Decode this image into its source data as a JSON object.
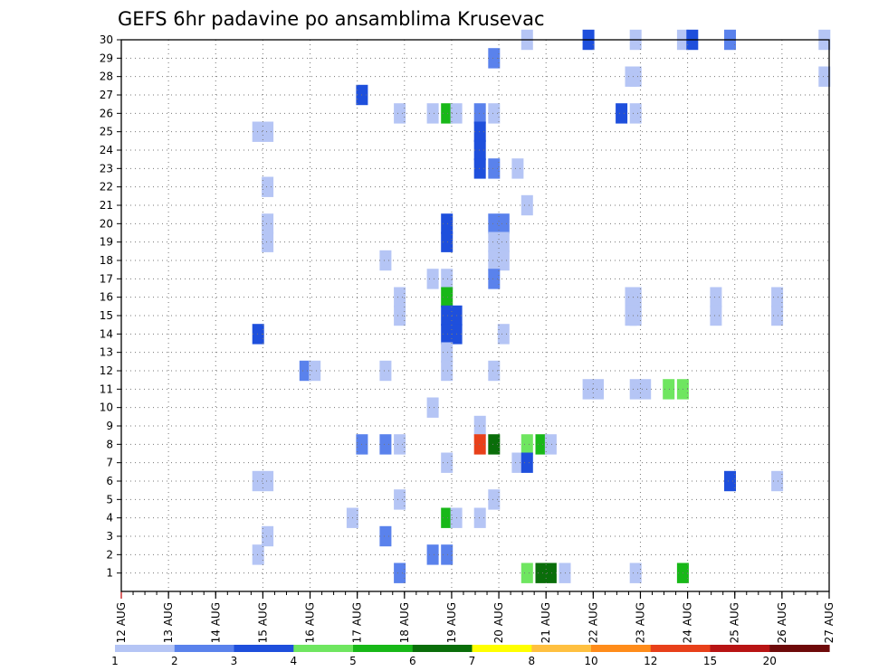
{
  "chart_data": {
    "type": "heatmap",
    "title": "GEFS 6hr padavine po ansamblima Krusevac",
    "xlabel": "",
    "ylabel": "",
    "x_tick_labels": [
      "12 AUG",
      "13 AUG",
      "14 AUG",
      "15 AUG",
      "16 AUG",
      "17 AUG",
      "18 AUG",
      "19 AUG",
      "20 AUG",
      "21 AUG",
      "22 AUG",
      "23 AUG",
      "24 AUG",
      "25 AUG",
      "26 AUG",
      "27 AUG"
    ],
    "xlim_days": [
      12,
      27
    ],
    "y_members": [
      1,
      2,
      3,
      4,
      5,
      6,
      7,
      8,
      9,
      10,
      11,
      12,
      13,
      14,
      15,
      16,
      17,
      18,
      19,
      20,
      21,
      22,
      23,
      24,
      25,
      26,
      27,
      28,
      29,
      30
    ],
    "ylim": [
      0,
      30
    ],
    "grid": true,
    "legend": "horizontal colorbar at bottom",
    "colorbar": {
      "labels": [
        "1",
        "2",
        "3",
        "4",
        "5",
        "6",
        "7",
        "8",
        "10",
        "12",
        "15",
        "20"
      ],
      "colors": [
        "#b5c5f5",
        "#5a82ec",
        "#1e4fdc",
        "#6fe660",
        "#18b818",
        "#0a6e0a",
        "#ffff00",
        "#ffc040",
        "#ff8c1a",
        "#e8401a",
        "#b81414",
        "#6e0a0a"
      ]
    },
    "cells": [
      {
        "m": 30,
        "x": 20.6,
        "c": 1
      },
      {
        "m": 30,
        "x": 21.9,
        "c": 3
      },
      {
        "m": 30,
        "x": 22.9,
        "c": 1
      },
      {
        "m": 30,
        "x": 23.9,
        "c": 1
      },
      {
        "m": 30,
        "x": 24.1,
        "c": 3
      },
      {
        "m": 30,
        "x": 24.9,
        "c": 2
      },
      {
        "m": 30,
        "x": 26.9,
        "c": 1
      },
      {
        "m": 29,
        "x": 19.9,
        "c": 2
      },
      {
        "m": 28,
        "x": 22.8,
        "c": 1
      },
      {
        "m": 28,
        "x": 22.9,
        "c": 1
      },
      {
        "m": 28,
        "x": 26.9,
        "c": 1
      },
      {
        "m": 27,
        "x": 17.1,
        "c": 3
      },
      {
        "m": 26,
        "x": 17.9,
        "c": 1
      },
      {
        "m": 26,
        "x": 18.6,
        "c": 1
      },
      {
        "m": 26,
        "x": 18.9,
        "c": 5
      },
      {
        "m": 26,
        "x": 19.1,
        "c": 1
      },
      {
        "m": 26,
        "x": 19.6,
        "c": 2
      },
      {
        "m": 26,
        "x": 19.9,
        "c": 1
      },
      {
        "m": 26,
        "x": 22.6,
        "c": 3
      },
      {
        "m": 26,
        "x": 22.9,
        "c": 1
      },
      {
        "m": 25,
        "x": 14.9,
        "c": 1
      },
      {
        "m": 25,
        "x": 15.1,
        "c": 1
      },
      {
        "m": 25,
        "x": 19.6,
        "c": 3
      },
      {
        "m": 24,
        "x": 19.6,
        "c": 3
      },
      {
        "m": 23,
        "x": 19.6,
        "c": 3
      },
      {
        "m": 23,
        "x": 19.9,
        "c": 2
      },
      {
        "m": 23,
        "x": 20.4,
        "c": 1
      },
      {
        "m": 22,
        "x": 15.1,
        "c": 1
      },
      {
        "m": 21,
        "x": 20.6,
        "c": 1
      },
      {
        "m": 20,
        "x": 15.1,
        "c": 1
      },
      {
        "m": 20,
        "x": 18.9,
        "c": 3
      },
      {
        "m": 20,
        "x": 19.9,
        "c": 2
      },
      {
        "m": 20,
        "x": 20.1,
        "c": 2
      },
      {
        "m": 19,
        "x": 15.1,
        "c": 1
      },
      {
        "m": 19,
        "x": 18.9,
        "c": 3
      },
      {
        "m": 19,
        "x": 19.9,
        "c": 1
      },
      {
        "m": 19,
        "x": 20.1,
        "c": 1
      },
      {
        "m": 18,
        "x": 17.6,
        "c": 1
      },
      {
        "m": 18,
        "x": 19.9,
        "c": 1
      },
      {
        "m": 18,
        "x": 20.1,
        "c": 1
      },
      {
        "m": 17,
        "x": 18.6,
        "c": 1
      },
      {
        "m": 17,
        "x": 18.9,
        "c": 1
      },
      {
        "m": 17,
        "x": 19.9,
        "c": 2
      },
      {
        "m": 16,
        "x": 17.9,
        "c": 1
      },
      {
        "m": 16,
        "x": 18.9,
        "c": 5
      },
      {
        "m": 16,
        "x": 22.8,
        "c": 1
      },
      {
        "m": 16,
        "x": 22.9,
        "c": 1
      },
      {
        "m": 16,
        "x": 24.6,
        "c": 1
      },
      {
        "m": 16,
        "x": 25.9,
        "c": 1
      },
      {
        "m": 15,
        "x": 17.9,
        "c": 1
      },
      {
        "m": 15,
        "x": 18.9,
        "c": 3
      },
      {
        "m": 15,
        "x": 19.1,
        "c": 3
      },
      {
        "m": 15,
        "x": 22.8,
        "c": 1
      },
      {
        "m": 15,
        "x": 22.9,
        "c": 1
      },
      {
        "m": 15,
        "x": 24.6,
        "c": 1
      },
      {
        "m": 15,
        "x": 25.9,
        "c": 1
      },
      {
        "m": 14,
        "x": 14.9,
        "c": 3
      },
      {
        "m": 14,
        "x": 18.9,
        "c": 3
      },
      {
        "m": 14,
        "x": 19.1,
        "c": 3
      },
      {
        "m": 14,
        "x": 20.1,
        "c": 1
      },
      {
        "m": 13,
        "x": 18.9,
        "c": 1
      },
      {
        "m": 12,
        "x": 15.9,
        "c": 2
      },
      {
        "m": 12,
        "x": 16.1,
        "c": 1
      },
      {
        "m": 12,
        "x": 17.6,
        "c": 1
      },
      {
        "m": 12,
        "x": 18.9,
        "c": 1
      },
      {
        "m": 12,
        "x": 19.9,
        "c": 1
      },
      {
        "m": 11,
        "x": 21.9,
        "c": 1
      },
      {
        "m": 11,
        "x": 22.1,
        "c": 1
      },
      {
        "m": 11,
        "x": 22.9,
        "c": 1
      },
      {
        "m": 11,
        "x": 23.1,
        "c": 1
      },
      {
        "m": 11,
        "x": 23.6,
        "c": 4
      },
      {
        "m": 11,
        "x": 23.9,
        "c": 4
      },
      {
        "m": 10,
        "x": 18.6,
        "c": 1
      },
      {
        "m": 9,
        "x": 19.6,
        "c": 1
      },
      {
        "m": 8,
        "x": 17.1,
        "c": 2
      },
      {
        "m": 8,
        "x": 17.6,
        "c": 2
      },
      {
        "m": 8,
        "x": 17.9,
        "c": 1
      },
      {
        "m": 8,
        "x": 19.6,
        "c": 10
      },
      {
        "m": 8,
        "x": 19.9,
        "c": 6
      },
      {
        "m": 8,
        "x": 20.6,
        "c": 4
      },
      {
        "m": 8,
        "x": 20.9,
        "c": 5
      },
      {
        "m": 8,
        "x": 21.1,
        "c": 1
      },
      {
        "m": 7,
        "x": 18.9,
        "c": 1
      },
      {
        "m": 7,
        "x": 20.4,
        "c": 1
      },
      {
        "m": 7,
        "x": 20.6,
        "c": 3
      },
      {
        "m": 6,
        "x": 14.9,
        "c": 1
      },
      {
        "m": 6,
        "x": 15.1,
        "c": 1
      },
      {
        "m": 6,
        "x": 24.9,
        "c": 3
      },
      {
        "m": 6,
        "x": 25.9,
        "c": 1
      },
      {
        "m": 5,
        "x": 17.9,
        "c": 1
      },
      {
        "m": 5,
        "x": 19.9,
        "c": 1
      },
      {
        "m": 4,
        "x": 16.9,
        "c": 1
      },
      {
        "m": 4,
        "x": 18.9,
        "c": 5
      },
      {
        "m": 4,
        "x": 19.1,
        "c": 1
      },
      {
        "m": 4,
        "x": 19.6,
        "c": 1
      },
      {
        "m": 3,
        "x": 15.1,
        "c": 1
      },
      {
        "m": 3,
        "x": 17.6,
        "c": 2
      },
      {
        "m": 2,
        "x": 14.9,
        "c": 1
      },
      {
        "m": 2,
        "x": 18.6,
        "c": 2
      },
      {
        "m": 2,
        "x": 18.9,
        "c": 2
      },
      {
        "m": 1,
        "x": 17.9,
        "c": 2
      },
      {
        "m": 1,
        "x": 20.6,
        "c": 4
      },
      {
        "m": 1,
        "x": 20.9,
        "c": 6
      },
      {
        "m": 1,
        "x": 21.1,
        "c": 6
      },
      {
        "m": 1,
        "x": 21.4,
        "c": 1
      },
      {
        "m": 1,
        "x": 22.9,
        "c": 1
      },
      {
        "m": 1,
        "x": 23.9,
        "c": 5
      }
    ]
  }
}
